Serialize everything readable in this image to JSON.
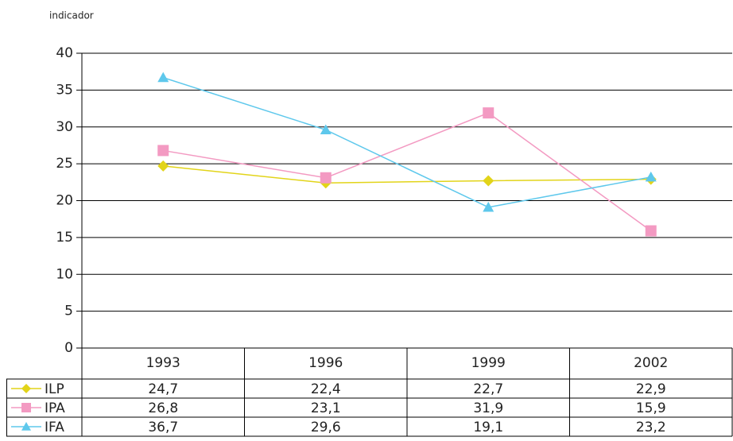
{
  "chart_data": {
    "type": "line",
    "y_label": "indicador",
    "categories": [
      "1993",
      "1996",
      "1999",
      "2002"
    ],
    "series": [
      {
        "name": "ILP",
        "color": "#e2d419",
        "marker": "diamond",
        "values": [
          24.7,
          22.4,
          22.7,
          22.9
        ],
        "value_labels": [
          "24,7",
          "22,4",
          "22,7",
          "22,9"
        ]
      },
      {
        "name": "IPA",
        "color": "#f39ac2",
        "marker": "square",
        "values": [
          26.8,
          23.1,
          31.9,
          15.9
        ],
        "value_labels": [
          "26,8",
          "23,1",
          "31,9",
          "15,9"
        ]
      },
      {
        "name": "IFA",
        "color": "#5ec8ec",
        "marker": "triangle",
        "values": [
          36.7,
          29.6,
          19.1,
          23.2
        ],
        "value_labels": [
          "36,7",
          "29,6",
          "19,1",
          "23,2"
        ]
      }
    ],
    "ylim": [
      0,
      40
    ],
    "yticks": [
      0,
      5,
      10,
      15,
      20,
      25,
      30,
      35,
      40
    ],
    "grid": true
  }
}
